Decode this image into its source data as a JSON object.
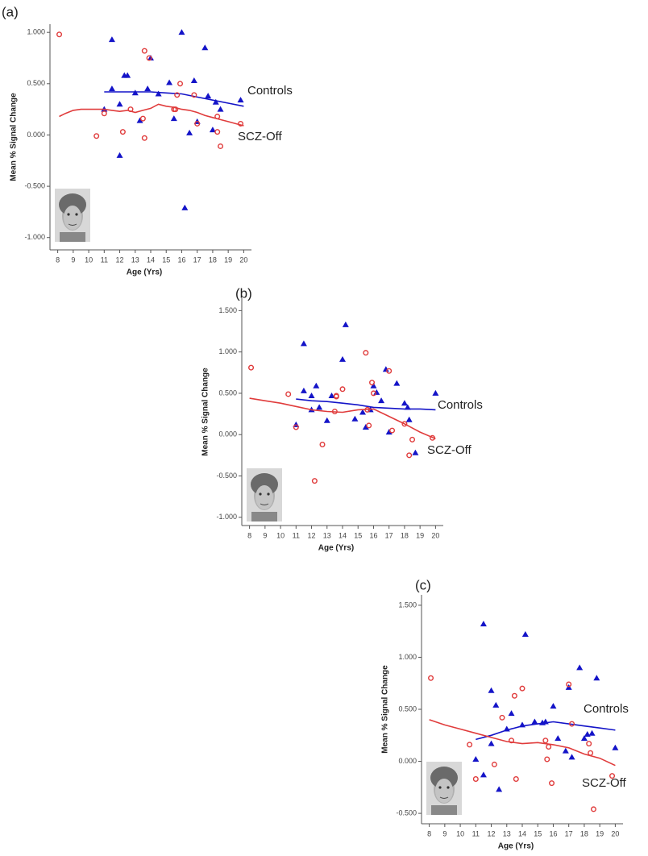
{
  "chart_data": [
    {
      "type": "scatter",
      "title": "(a)",
      "xlabel": "Age (Yrs)",
      "ylabel": "Mean % Signal Change",
      "xlim": [
        7.5,
        20.5
      ],
      "xticks": [
        8,
        9,
        10,
        11,
        12,
        13,
        14,
        15,
        16,
        17,
        18,
        19,
        20
      ],
      "ylim": [
        -1.12,
        1.08
      ],
      "yticks": [
        {
          "value": -1,
          "label": "-1.000"
        },
        {
          "value": -0.5,
          "label": "-0.500"
        },
        {
          "value": 0,
          "label": "0.000"
        },
        {
          "value": 0.5,
          "label": "0.500"
        },
        {
          "value": 1,
          "label": "1.000"
        }
      ],
      "series": [
        {
          "name": "Controls",
          "color": "#1414c8",
          "marker": "triangle",
          "x": [
            11.0,
            11.5,
            11.5,
            12.0,
            12.0,
            12.3,
            12.5,
            13.0,
            13.3,
            13.8,
            14.0,
            14.5,
            15.2,
            15.5,
            16.0,
            16.2,
            16.5,
            16.8,
            17.0,
            17.5,
            17.7,
            18.0,
            18.2,
            18.5,
            19.8
          ],
          "values": [
            0.25,
            0.45,
            0.93,
            0.3,
            -0.2,
            0.58,
            0.58,
            0.41,
            0.14,
            0.45,
            0.75,
            0.4,
            0.51,
            0.16,
            1.0,
            -0.71,
            0.02,
            0.53,
            0.13,
            0.85,
            0.38,
            0.05,
            0.32,
            0.25,
            0.34
          ],
          "fit_x": [
            11,
            12,
            13,
            14,
            15,
            16,
            17,
            18,
            19,
            20
          ],
          "fit_values": [
            0.42,
            0.42,
            0.42,
            0.42,
            0.41,
            0.4,
            0.37,
            0.34,
            0.31,
            0.28
          ]
        },
        {
          "name": "SCZ-Off",
          "color": "#e03c3c",
          "marker": "circle",
          "x": [
            8.1,
            10.5,
            11.0,
            12.2,
            12.7,
            13.5,
            13.6,
            13.6,
            13.9,
            15.5,
            15.6,
            15.7,
            15.9,
            16.8,
            17.0,
            18.3,
            18.3,
            18.5,
            19.8
          ],
          "values": [
            0.98,
            -0.01,
            0.21,
            0.03,
            0.25,
            0.16,
            -0.03,
            0.82,
            0.75,
            0.25,
            0.25,
            0.39,
            0.5,
            0.39,
            0.11,
            0.18,
            0.03,
            -0.11,
            0.11
          ],
          "fit_x": [
            8.1,
            8.5,
            9,
            9.5,
            10,
            10.5,
            11,
            11.5,
            12,
            12.5,
            13,
            13.5,
            14,
            14.5,
            15,
            15.5,
            16,
            16.5,
            17,
            17.5,
            18,
            18.5,
            19,
            19.5,
            20
          ],
          "fit_values": [
            0.18,
            0.21,
            0.24,
            0.25,
            0.25,
            0.25,
            0.25,
            0.24,
            0.23,
            0.24,
            0.22,
            0.24,
            0.26,
            0.3,
            0.28,
            0.27,
            0.25,
            0.24,
            0.22,
            0.19,
            0.17,
            0.15,
            0.13,
            0.11,
            0.09
          ]
        }
      ]
    },
    {
      "type": "scatter",
      "title": "(b)",
      "xlabel": "Age (Yrs)",
      "ylabel": "Mean % Signal Change",
      "xlim": [
        7.5,
        20.5
      ],
      "xticks": [
        8,
        9,
        10,
        11,
        12,
        13,
        14,
        15,
        16,
        17,
        18,
        19,
        20
      ],
      "ylim": [
        -1.1,
        1.65
      ],
      "yticks": [
        {
          "value": -1,
          "label": "-1.000"
        },
        {
          "value": -0.5,
          "label": "-0.500"
        },
        {
          "value": 0,
          "label": "0.000"
        },
        {
          "value": 0.5,
          "label": "0.500"
        },
        {
          "value": 1,
          "label": "1.000"
        },
        {
          "value": 1.5,
          "label": "1.500"
        }
      ],
      "series": [
        {
          "name": "Controls",
          "color": "#1414c8",
          "marker": "triangle",
          "x": [
            11.0,
            11.5,
            11.5,
            12.0,
            12.0,
            12.3,
            12.5,
            13.0,
            13.3,
            14.0,
            14.2,
            14.8,
            15.3,
            15.5,
            15.8,
            16.0,
            16.2,
            16.5,
            16.8,
            17.0,
            17.5,
            18.0,
            18.2,
            18.3,
            18.7,
            20.0
          ],
          "values": [
            0.12,
            1.1,
            0.53,
            0.3,
            0.47,
            0.59,
            0.33,
            0.17,
            0.47,
            0.91,
            1.33,
            0.19,
            0.27,
            0.09,
            0.3,
            0.59,
            0.51,
            0.41,
            0.79,
            0.03,
            0.62,
            0.38,
            0.33,
            0.18,
            -0.22,
            0.5
          ],
          "fit_x": [
            11,
            12,
            13,
            14,
            15,
            16,
            17,
            18,
            19,
            20
          ],
          "fit_values": [
            0.43,
            0.41,
            0.4,
            0.38,
            0.36,
            0.33,
            0.32,
            0.31,
            0.31,
            0.3
          ]
        },
        {
          "name": "SCZ-Off",
          "color": "#e03c3c",
          "marker": "circle",
          "x": [
            8.1,
            10.5,
            11.0,
            12.2,
            12.7,
            13.5,
            13.6,
            13.6,
            14.0,
            15.5,
            15.6,
            15.7,
            15.9,
            16.0,
            17.0,
            17.2,
            18.0,
            18.3,
            18.5,
            19.8
          ],
          "values": [
            0.81,
            0.49,
            0.09,
            -0.56,
            -0.12,
            0.28,
            0.47,
            0.46,
            0.55,
            0.99,
            0.3,
            0.11,
            0.63,
            0.5,
            0.77,
            0.05,
            0.13,
            -0.25,
            -0.06,
            -0.04
          ],
          "fit_x": [
            8,
            9,
            10,
            11,
            12,
            13,
            14,
            15,
            16,
            17,
            18,
            19,
            20
          ],
          "fit_values": [
            0.44,
            0.41,
            0.38,
            0.34,
            0.3,
            0.28,
            0.27,
            0.3,
            0.31,
            0.22,
            0.13,
            0.03,
            -0.05
          ]
        }
      ]
    },
    {
      "type": "scatter",
      "title": "(c)",
      "xlabel": "Age (Yrs)",
      "ylabel": "Mean % Signal Change",
      "xlim": [
        7.5,
        20.5
      ],
      "xticks": [
        8,
        9,
        10,
        11,
        12,
        13,
        14,
        15,
        16,
        17,
        18,
        19,
        20
      ],
      "ylim": [
        -0.6,
        1.6
      ],
      "yticks": [
        {
          "value": -0.5,
          "label": "-0.500"
        },
        {
          "value": 0,
          "label": "0.000"
        },
        {
          "value": 0.5,
          "label": "0.500"
        },
        {
          "value": 1,
          "label": "1.000"
        },
        {
          "value": 1.5,
          "label": "1.500"
        }
      ],
      "series": [
        {
          "name": "Controls",
          "color": "#1414c8",
          "marker": "triangle",
          "x": [
            11.0,
            11.5,
            11.5,
            12.0,
            12.0,
            12.3,
            12.5,
            13.0,
            13.3,
            14.0,
            14.2,
            14.8,
            15.3,
            15.5,
            16.0,
            16.3,
            16.8,
            17.0,
            17.2,
            17.7,
            18.0,
            18.2,
            18.5,
            18.8,
            20.0
          ],
          "values": [
            0.02,
            -0.13,
            1.32,
            0.17,
            0.68,
            0.54,
            -0.27,
            0.31,
            0.46,
            0.35,
            1.22,
            0.38,
            0.37,
            0.38,
            0.53,
            0.22,
            0.1,
            0.71,
            0.04,
            0.9,
            0.22,
            0.26,
            0.27,
            0.8,
            0.13
          ],
          "fit_x": [
            11,
            12,
            13,
            14,
            15,
            16,
            17,
            18,
            19,
            20
          ],
          "fit_values": [
            0.21,
            0.25,
            0.3,
            0.34,
            0.36,
            0.38,
            0.36,
            0.34,
            0.32,
            0.3
          ]
        },
        {
          "name": "SCZ-Off",
          "color": "#e03c3c",
          "marker": "circle",
          "x": [
            8.1,
            10.6,
            11.0,
            12.2,
            12.7,
            13.3,
            13.5,
            13.6,
            14.0,
            15.5,
            15.6,
            15.7,
            15.9,
            17.0,
            17.2,
            18.3,
            18.4,
            18.6,
            19.8
          ],
          "values": [
            0.8,
            0.16,
            -0.17,
            -0.03,
            0.42,
            0.2,
            0.63,
            -0.17,
            0.7,
            0.2,
            0.02,
            0.14,
            -0.21,
            0.74,
            0.36,
            0.17,
            0.08,
            -0.46,
            -0.14
          ],
          "fit_x": [
            8,
            9,
            10,
            11,
            12,
            13,
            14,
            15,
            16,
            17,
            18,
            19,
            20
          ],
          "fit_values": [
            0.4,
            0.35,
            0.31,
            0.27,
            0.23,
            0.19,
            0.17,
            0.18,
            0.16,
            0.13,
            0.07,
            0.03,
            -0.04
          ]
        }
      ]
    }
  ]
}
